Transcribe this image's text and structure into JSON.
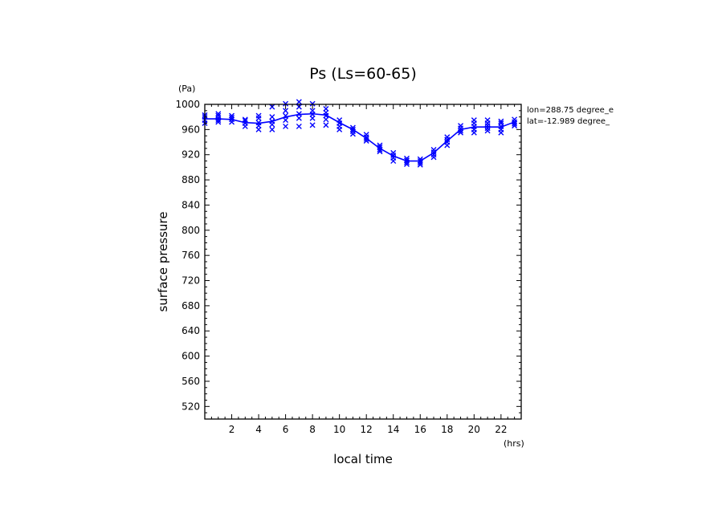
{
  "chart_data": {
    "type": "line",
    "title": "Ps (Ls=60-65)",
    "xlabel": "local time",
    "ylabel": "surface pressure",
    "x_unit": "(hrs)",
    "y_unit": "(Pa)",
    "info": [
      "lon=288.75 degree_e",
      "lat=-12.989 degree_"
    ],
    "xlim": [
      0,
      23.5
    ],
    "ylim": [
      500,
      1000
    ],
    "x_ticks": [
      2,
      4,
      6,
      8,
      10,
      12,
      14,
      16,
      18,
      20,
      22
    ],
    "y_ticks": [
      520,
      560,
      600,
      640,
      680,
      720,
      760,
      800,
      840,
      880,
      920,
      960,
      1000
    ],
    "grid": false,
    "colors": {
      "series": "#0000ff",
      "axes": "#000000"
    },
    "series": [
      {
        "kind": "line",
        "x": [
          0,
          1,
          2,
          3,
          4,
          5,
          6,
          7,
          8,
          9,
          10,
          11,
          12,
          13,
          14,
          15,
          16,
          17,
          18,
          19,
          20,
          21,
          22,
          23
        ],
        "y": [
          977,
          977,
          976,
          971,
          970,
          973,
          980,
          984,
          985,
          983,
          971,
          960,
          946,
          930,
          918,
          910,
          910,
          923,
          942,
          960,
          964,
          964,
          964,
          972
        ]
      },
      {
        "kind": "scatter",
        "marker": "x",
        "points": [
          [
            0,
            970
          ],
          [
            0,
            975
          ],
          [
            0,
            980
          ],
          [
            0,
            983
          ],
          [
            1,
            972
          ],
          [
            1,
            975
          ],
          [
            1,
            978
          ],
          [
            1,
            982
          ],
          [
            1,
            985
          ],
          [
            2,
            972
          ],
          [
            2,
            976
          ],
          [
            2,
            979
          ],
          [
            2,
            982
          ],
          [
            3,
            965
          ],
          [
            3,
            970
          ],
          [
            3,
            974
          ],
          [
            3,
            976
          ],
          [
            4,
            960
          ],
          [
            4,
            966
          ],
          [
            4,
            971
          ],
          [
            4,
            978
          ],
          [
            4,
            982
          ],
          [
            5,
            960
          ],
          [
            5,
            968
          ],
          [
            5,
            973
          ],
          [
            5,
            980
          ],
          [
            5,
            996
          ],
          [
            6,
            965
          ],
          [
            6,
            975
          ],
          [
            6,
            982
          ],
          [
            6,
            990
          ],
          [
            6,
            1001
          ],
          [
            7,
            965
          ],
          [
            7,
            978
          ],
          [
            7,
            985
          ],
          [
            7,
            996
          ],
          [
            7,
            1004
          ],
          [
            8,
            967
          ],
          [
            8,
            978
          ],
          [
            8,
            984
          ],
          [
            8,
            990
          ],
          [
            8,
            1001
          ],
          [
            9,
            967
          ],
          [
            9,
            976
          ],
          [
            9,
            982
          ],
          [
            9,
            987
          ],
          [
            9,
            993
          ],
          [
            10,
            960
          ],
          [
            10,
            965
          ],
          [
            10,
            970
          ],
          [
            10,
            975
          ],
          [
            11,
            953
          ],
          [
            11,
            957
          ],
          [
            11,
            960
          ],
          [
            11,
            963
          ],
          [
            12,
            942
          ],
          [
            12,
            945
          ],
          [
            12,
            948
          ],
          [
            12,
            952
          ],
          [
            13,
            925
          ],
          [
            13,
            928
          ],
          [
            13,
            932
          ],
          [
            13,
            935
          ],
          [
            14,
            910
          ],
          [
            14,
            915
          ],
          [
            14,
            919
          ],
          [
            14,
            923
          ],
          [
            15,
            905
          ],
          [
            15,
            908
          ],
          [
            15,
            911
          ],
          [
            15,
            914
          ],
          [
            16,
            904
          ],
          [
            16,
            907
          ],
          [
            16,
            910
          ],
          [
            16,
            913
          ],
          [
            17,
            916
          ],
          [
            17,
            920
          ],
          [
            17,
            924
          ],
          [
            17,
            928
          ],
          [
            18,
            935
          ],
          [
            18,
            940
          ],
          [
            18,
            944
          ],
          [
            18,
            948
          ],
          [
            19,
            955
          ],
          [
            19,
            958
          ],
          [
            19,
            962
          ],
          [
            19,
            966
          ],
          [
            20,
            955
          ],
          [
            20,
            960
          ],
          [
            20,
            965
          ],
          [
            20,
            970
          ],
          [
            20,
            975
          ],
          [
            21,
            958
          ],
          [
            21,
            962
          ],
          [
            21,
            966
          ],
          [
            21,
            970
          ],
          [
            21,
            975
          ],
          [
            22,
            955
          ],
          [
            22,
            960
          ],
          [
            22,
            965
          ],
          [
            22,
            970
          ],
          [
            22,
            973
          ],
          [
            23,
            966
          ],
          [
            23,
            969
          ],
          [
            23,
            972
          ],
          [
            23,
            976
          ]
        ]
      }
    ]
  }
}
